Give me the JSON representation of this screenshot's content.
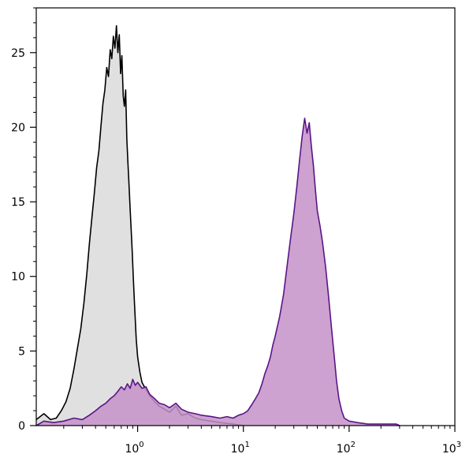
{
  "chart_data": {
    "type": "area",
    "title": "",
    "xlabel": "",
    "ylabel": "",
    "x_scale": "log",
    "xlim": [
      0.11,
      1000
    ],
    "ylim": [
      0,
      28
    ],
    "y_ticks": [
      0,
      5,
      10,
      15,
      20,
      25
    ],
    "y_tick_labels": [
      "0",
      "5",
      "10",
      "15",
      "20",
      "25"
    ],
    "x_ticks": [
      1,
      10,
      100,
      1000
    ],
    "x_tick_labels": [
      {
        "base": "10",
        "exp": "0"
      },
      {
        "base": "10",
        "exp": "1"
      },
      {
        "base": "10",
        "exp": "2"
      },
      {
        "base": "10",
        "exp": "3"
      }
    ],
    "grid": false,
    "legend": "none",
    "series": [
      {
        "fill": "#e0e0e0",
        "stroke": "#000000",
        "points": [
          [
            0.11,
            0.4
          ],
          [
            0.13,
            0.8
          ],
          [
            0.15,
            0.4
          ],
          [
            0.17,
            0.5
          ],
          [
            0.19,
            1.0
          ],
          [
            0.21,
            1.6
          ],
          [
            0.23,
            2.5
          ],
          [
            0.25,
            3.8
          ],
          [
            0.27,
            5.2
          ],
          [
            0.29,
            6.5
          ],
          [
            0.31,
            8.2
          ],
          [
            0.33,
            10.1
          ],
          [
            0.35,
            12.2
          ],
          [
            0.37,
            14.0
          ],
          [
            0.39,
            15.6
          ],
          [
            0.41,
            17.3
          ],
          [
            0.43,
            18.4
          ],
          [
            0.45,
            20.1
          ],
          [
            0.47,
            21.6
          ],
          [
            0.49,
            22.5
          ],
          [
            0.51,
            24.0
          ],
          [
            0.53,
            23.4
          ],
          [
            0.55,
            25.2
          ],
          [
            0.57,
            24.6
          ],
          [
            0.59,
            26.1
          ],
          [
            0.61,
            25.3
          ],
          [
            0.63,
            26.8
          ],
          [
            0.65,
            25.0
          ],
          [
            0.67,
            26.2
          ],
          [
            0.69,
            23.6
          ],
          [
            0.71,
            24.8
          ],
          [
            0.73,
            22.1
          ],
          [
            0.75,
            21.4
          ],
          [
            0.77,
            22.5
          ],
          [
            0.79,
            19.2
          ],
          [
            0.81,
            17.6
          ],
          [
            0.83,
            16.1
          ],
          [
            0.85,
            14.5
          ],
          [
            0.87,
            13.0
          ],
          [
            0.89,
            11.6
          ],
          [
            0.91,
            9.9
          ],
          [
            0.93,
            8.4
          ],
          [
            0.95,
            7.1
          ],
          [
            0.97,
            5.8
          ],
          [
            1.0,
            4.6
          ],
          [
            1.05,
            3.6
          ],
          [
            1.1,
            2.9
          ],
          [
            1.2,
            2.4
          ],
          [
            1.3,
            2.0
          ],
          [
            1.45,
            1.6
          ],
          [
            1.6,
            1.3
          ],
          [
            1.8,
            1.1
          ],
          [
            2.0,
            0.9
          ],
          [
            2.3,
            1.3
          ],
          [
            2.6,
            0.7
          ],
          [
            3.0,
            0.8
          ],
          [
            3.5,
            0.5
          ],
          [
            4.0,
            0.4
          ],
          [
            5.0,
            0.3
          ],
          [
            6.0,
            0.2
          ],
          [
            8.0,
            0.1
          ],
          [
            10.0,
            0.0
          ]
        ]
      },
      {
        "fill": "#c490c8",
        "stroke": "#5a1586",
        "points": [
          [
            0.11,
            0.0
          ],
          [
            0.13,
            0.3
          ],
          [
            0.16,
            0.2
          ],
          [
            0.2,
            0.3
          ],
          [
            0.25,
            0.5
          ],
          [
            0.3,
            0.4
          ],
          [
            0.35,
            0.7
          ],
          [
            0.4,
            1.0
          ],
          [
            0.45,
            1.3
          ],
          [
            0.5,
            1.5
          ],
          [
            0.55,
            1.8
          ],
          [
            0.6,
            2.0
          ],
          [
            0.65,
            2.3
          ],
          [
            0.7,
            2.6
          ],
          [
            0.75,
            2.4
          ],
          [
            0.8,
            2.8
          ],
          [
            0.85,
            2.5
          ],
          [
            0.9,
            3.1
          ],
          [
            0.95,
            2.7
          ],
          [
            1.0,
            2.9
          ],
          [
            1.1,
            2.5
          ],
          [
            1.2,
            2.6
          ],
          [
            1.3,
            2.1
          ],
          [
            1.45,
            1.8
          ],
          [
            1.6,
            1.5
          ],
          [
            1.8,
            1.4
          ],
          [
            2.0,
            1.2
          ],
          [
            2.3,
            1.5
          ],
          [
            2.6,
            1.1
          ],
          [
            3.0,
            0.9
          ],
          [
            3.5,
            0.8
          ],
          [
            4.0,
            0.7
          ],
          [
            5.0,
            0.6
          ],
          [
            6.0,
            0.5
          ],
          [
            7.0,
            0.6
          ],
          [
            8.0,
            0.5
          ],
          [
            9.0,
            0.7
          ],
          [
            10.0,
            0.8
          ],
          [
            11.0,
            1.0
          ],
          [
            12.0,
            1.4
          ],
          [
            13.0,
            1.8
          ],
          [
            14.0,
            2.2
          ],
          [
            15.0,
            2.8
          ],
          [
            16.0,
            3.5
          ],
          [
            17.0,
            4.0
          ],
          [
            18.0,
            4.6
          ],
          [
            19.0,
            5.4
          ],
          [
            20.0,
            6.0
          ],
          [
            22.0,
            7.3
          ],
          [
            24.0,
            8.8
          ],
          [
            26.0,
            10.8
          ],
          [
            28.0,
            12.6
          ],
          [
            30.0,
            14.2
          ],
          [
            32.0,
            16.0
          ],
          [
            34.0,
            17.8
          ],
          [
            36.0,
            19.4
          ],
          [
            38.0,
            20.6
          ],
          [
            40.0,
            19.6
          ],
          [
            42.0,
            20.3
          ],
          [
            44.0,
            18.7
          ],
          [
            46.0,
            17.4
          ],
          [
            48.0,
            15.8
          ],
          [
            50.0,
            14.4
          ],
          [
            53.0,
            13.4
          ],
          [
            56.0,
            12.3
          ],
          [
            60.0,
            10.6
          ],
          [
            64.0,
            8.6
          ],
          [
            68.0,
            6.6
          ],
          [
            72.0,
            4.8
          ],
          [
            76.0,
            3.0
          ],
          [
            80.0,
            1.8
          ],
          [
            85.0,
            1.0
          ],
          [
            90.0,
            0.5
          ],
          [
            100.0,
            0.3
          ],
          [
            120.0,
            0.2
          ],
          [
            150.0,
            0.1
          ],
          [
            200.0,
            0.1
          ],
          [
            280.0,
            0.1
          ],
          [
            300.0,
            0.0
          ]
        ]
      }
    ]
  }
}
